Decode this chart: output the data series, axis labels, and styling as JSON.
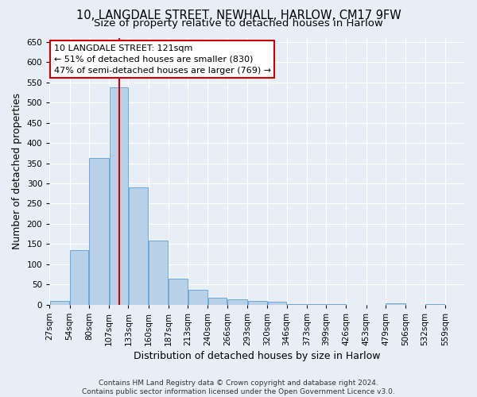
{
  "title_line1": "10, LANGDALE STREET, NEWHALL, HARLOW, CM17 9FW",
  "title_line2": "Size of property relative to detached houses in Harlow",
  "xlabel": "Distribution of detached houses by size in Harlow",
  "ylabel": "Number of detached properties",
  "bar_color": "#b8d0e8",
  "bar_edge_color": "#5a9fd4",
  "reference_line_color": "#cc0000",
  "reference_line_x": 121,
  "annotation_text": "10 LANGDALE STREET: 121sqm\n← 51% of detached houses are smaller (830)\n47% of semi-detached houses are larger (769) →",
  "annotation_box_color": "white",
  "annotation_box_edge_color": "#cc0000",
  "footnote": "Contains HM Land Registry data © Crown copyright and database right 2024.\nContains public sector information licensed under the Open Government Licence v3.0.",
  "bins": [
    27,
    54,
    80,
    107,
    133,
    160,
    187,
    213,
    240,
    266,
    293,
    320,
    346,
    373,
    399,
    426,
    453,
    479,
    506,
    532,
    559
  ],
  "counts": [
    10,
    135,
    362,
    537,
    290,
    158,
    65,
    38,
    17,
    13,
    10,
    8,
    2,
    1,
    1,
    0,
    0,
    3,
    0,
    1,
    0
  ],
  "ylim": [
    0,
    660
  ],
  "yticks": [
    0,
    50,
    100,
    150,
    200,
    250,
    300,
    350,
    400,
    450,
    500,
    550,
    600,
    650
  ],
  "background_color": "#e8eef5",
  "grid_color": "white",
  "title_fontsize": 10.5,
  "subtitle_fontsize": 9.5,
  "tick_fontsize": 7.5,
  "label_fontsize": 9,
  "annotation_fontsize": 8
}
